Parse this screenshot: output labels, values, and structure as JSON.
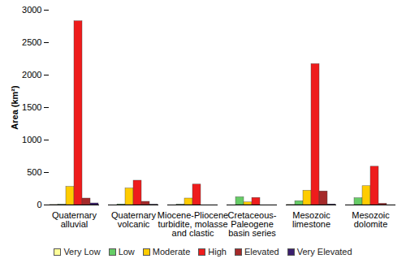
{
  "chart_data": {
    "type": "bar",
    "ylabel": "Area (km²)",
    "categories": [
      "Quaternary\nalluvial",
      "Quaternary\nvolcanic",
      "Miocene-Pliocene\nturbidite, molasse\nand clastic",
      "Cretaceous-\nPaleogene\nbasin series",
      "Mesozoic\nlimestone",
      "Mesozoic\ndolomite"
    ],
    "series": [
      {
        "name": "Very Low",
        "color": "#ffff99",
        "values": [
          2,
          0,
          0,
          0,
          2,
          0
        ]
      },
      {
        "name": "Low",
        "color": "#66cc66",
        "values": [
          5,
          10,
          5,
          120,
          60,
          105
        ]
      },
      {
        "name": "Moderate",
        "color": "#ffcc00",
        "values": [
          280,
          255,
          100,
          40,
          220,
          290
        ]
      },
      {
        "name": "High",
        "color": "#ee1c1c",
        "values": [
          2830,
          375,
          315,
          110,
          2170,
          590
        ]
      },
      {
        "name": "Elevated",
        "color": "#a52a2a",
        "values": [
          100,
          50,
          0,
          0,
          210,
          20
        ]
      },
      {
        "name": "Very Elevated",
        "color": "#3b1f6e",
        "values": [
          25,
          5,
          0,
          0,
          10,
          0
        ]
      }
    ],
    "ylim": [
      0,
      3000
    ],
    "yticks": [
      0,
      500,
      1000,
      1500,
      2000,
      2500,
      3000
    ],
    "grid": false,
    "legend": "bottom"
  }
}
